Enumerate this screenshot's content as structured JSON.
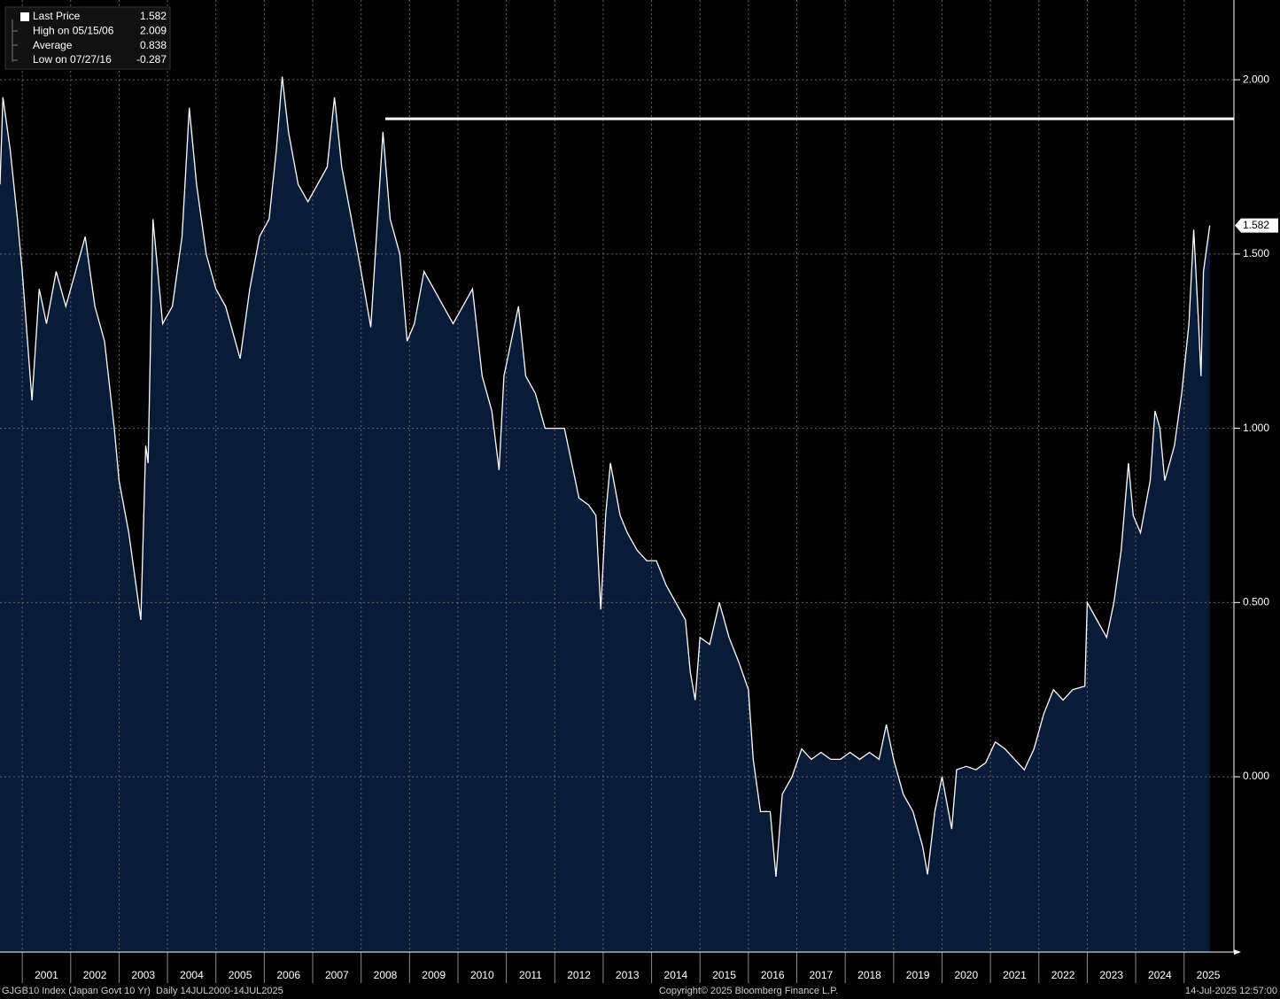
{
  "chart_data": {
    "type": "line",
    "x": [
      2000.54,
      2000.6,
      2000.75,
      2000.9,
      2001.0,
      2001.2,
      2001.35,
      2001.5,
      2001.7,
      2001.9,
      2002.1,
      2002.3,
      2002.5,
      2002.7,
      2002.9,
      2003.0,
      2003.2,
      2003.3,
      2003.45,
      2003.55,
      2003.6,
      2003.7,
      2003.9,
      2004.1,
      2004.3,
      2004.45,
      2004.6,
      2004.8,
      2005.0,
      2005.2,
      2005.4,
      2005.5,
      2005.7,
      2005.9,
      2006.1,
      2006.25,
      2006.37,
      2006.5,
      2006.7,
      2006.9,
      2007.1,
      2007.3,
      2007.45,
      2007.6,
      2007.8,
      2008.0,
      2008.2,
      2008.45,
      2008.6,
      2008.8,
      2008.95,
      2009.1,
      2009.3,
      2009.5,
      2009.7,
      2009.9,
      2010.1,
      2010.3,
      2010.5,
      2010.7,
      2010.85,
      2010.95,
      2011.1,
      2011.25,
      2011.4,
      2011.6,
      2011.8,
      2012.0,
      2012.2,
      2012.35,
      2012.5,
      2012.7,
      2012.85,
      2012.95,
      2013.05,
      2013.15,
      2013.35,
      2013.5,
      2013.7,
      2013.9,
      2014.1,
      2014.3,
      2014.5,
      2014.7,
      2014.8,
      2014.9,
      2015.0,
      2015.2,
      2015.4,
      2015.6,
      2015.8,
      2016.0,
      2016.1,
      2016.25,
      2016.45,
      2016.57,
      2016.7,
      2016.9,
      2017.1,
      2017.3,
      2017.5,
      2017.7,
      2017.9,
      2018.1,
      2018.3,
      2018.5,
      2018.7,
      2018.85,
      2019.0,
      2019.2,
      2019.4,
      2019.6,
      2019.7,
      2019.85,
      2020.0,
      2020.2,
      2020.3,
      2020.5,
      2020.7,
      2020.9,
      2021.1,
      2021.3,
      2021.5,
      2021.7,
      2021.9,
      2022.1,
      2022.3,
      2022.5,
      2022.7,
      2022.95,
      2023.0,
      2023.2,
      2023.4,
      2023.55,
      2023.7,
      2023.85,
      2023.95,
      2024.1,
      2024.3,
      2024.4,
      2024.5,
      2024.6,
      2024.8,
      2024.95,
      2025.1,
      2025.2,
      2025.3,
      2025.35,
      2025.4,
      2025.45,
      2025.53
    ],
    "series": [
      {
        "name": "Last Price",
        "color": "#ffffff",
        "fill": "#081c3a",
        "values": [
          1.7,
          1.95,
          1.8,
          1.6,
          1.45,
          1.08,
          1.4,
          1.3,
          1.45,
          1.35,
          1.45,
          1.55,
          1.35,
          1.25,
          1.0,
          0.85,
          0.7,
          0.6,
          0.45,
          0.95,
          0.9,
          1.6,
          1.3,
          1.35,
          1.55,
          1.92,
          1.7,
          1.5,
          1.4,
          1.35,
          1.25,
          1.2,
          1.4,
          1.55,
          1.6,
          1.8,
          2.009,
          1.85,
          1.7,
          1.65,
          1.7,
          1.75,
          1.95,
          1.75,
          1.6,
          1.45,
          1.29,
          1.85,
          1.6,
          1.5,
          1.25,
          1.3,
          1.45,
          1.4,
          1.35,
          1.3,
          1.35,
          1.4,
          1.15,
          1.05,
          0.88,
          1.15,
          1.25,
          1.35,
          1.15,
          1.1,
          1.0,
          1.0,
          1.0,
          0.9,
          0.8,
          0.78,
          0.75,
          0.48,
          0.75,
          0.9,
          0.75,
          0.7,
          0.65,
          0.62,
          0.62,
          0.55,
          0.5,
          0.45,
          0.3,
          0.22,
          0.4,
          0.38,
          0.5,
          0.4,
          0.33,
          0.25,
          0.05,
          -0.1,
          -0.1,
          -0.287,
          -0.05,
          0.0,
          0.08,
          0.05,
          0.07,
          0.05,
          0.05,
          0.07,
          0.05,
          0.07,
          0.05,
          0.15,
          0.05,
          -0.05,
          -0.1,
          -0.2,
          -0.28,
          -0.1,
          0.0,
          -0.15,
          0.02,
          0.03,
          0.02,
          0.04,
          0.1,
          0.08,
          0.05,
          0.02,
          0.08,
          0.18,
          0.25,
          0.22,
          0.25,
          0.26,
          0.5,
          0.45,
          0.4,
          0.5,
          0.65,
          0.9,
          0.75,
          0.7,
          0.85,
          1.05,
          1.0,
          0.85,
          0.95,
          1.1,
          1.3,
          1.57,
          1.3,
          1.15,
          1.45,
          1.5,
          1.582
        ]
      }
    ],
    "xlim": [
      2000.54,
      2026.03
    ],
    "xticks": [
      2001,
      2002,
      2003,
      2004,
      2005,
      2006,
      2007,
      2008,
      2009,
      2010,
      2011,
      2012,
      2013,
      2014,
      2015,
      2016,
      2017,
      2018,
      2019,
      2020,
      2021,
      2022,
      2023,
      2024,
      2025
    ],
    "ylim": [
      -0.503,
      2.229
    ],
    "yticks": [
      {
        "value": 0,
        "label": "0.000"
      },
      {
        "value": 0.5,
        "label": "0.500"
      },
      {
        "value": 1,
        "label": "1.000"
      },
      {
        "value": 1.5,
        "label": "1.500"
      },
      {
        "value": 2,
        "label": "2.000"
      }
    ],
    "grid": true,
    "reference_line": {
      "value": 1.888,
      "x_start": 2008.5
    },
    "legend": [
      {
        "label": "Last Price",
        "value": 1.582
      },
      {
        "label": "High on 05/15/06",
        "value": 2.009
      },
      {
        "label": "Average",
        "value": 0.838
      },
      {
        "label": "Low on 07/27/16",
        "value": -0.287
      }
    ],
    "footer": {
      "left": "GJGB10 Index (Japan Govt 10 Yr)  Daily 14JUL2000-14JUL2025",
      "center": "Copyright© 2025 Bloomberg Finance L.P.",
      "right": "14-Jul-2025 12:57:00"
    }
  }
}
